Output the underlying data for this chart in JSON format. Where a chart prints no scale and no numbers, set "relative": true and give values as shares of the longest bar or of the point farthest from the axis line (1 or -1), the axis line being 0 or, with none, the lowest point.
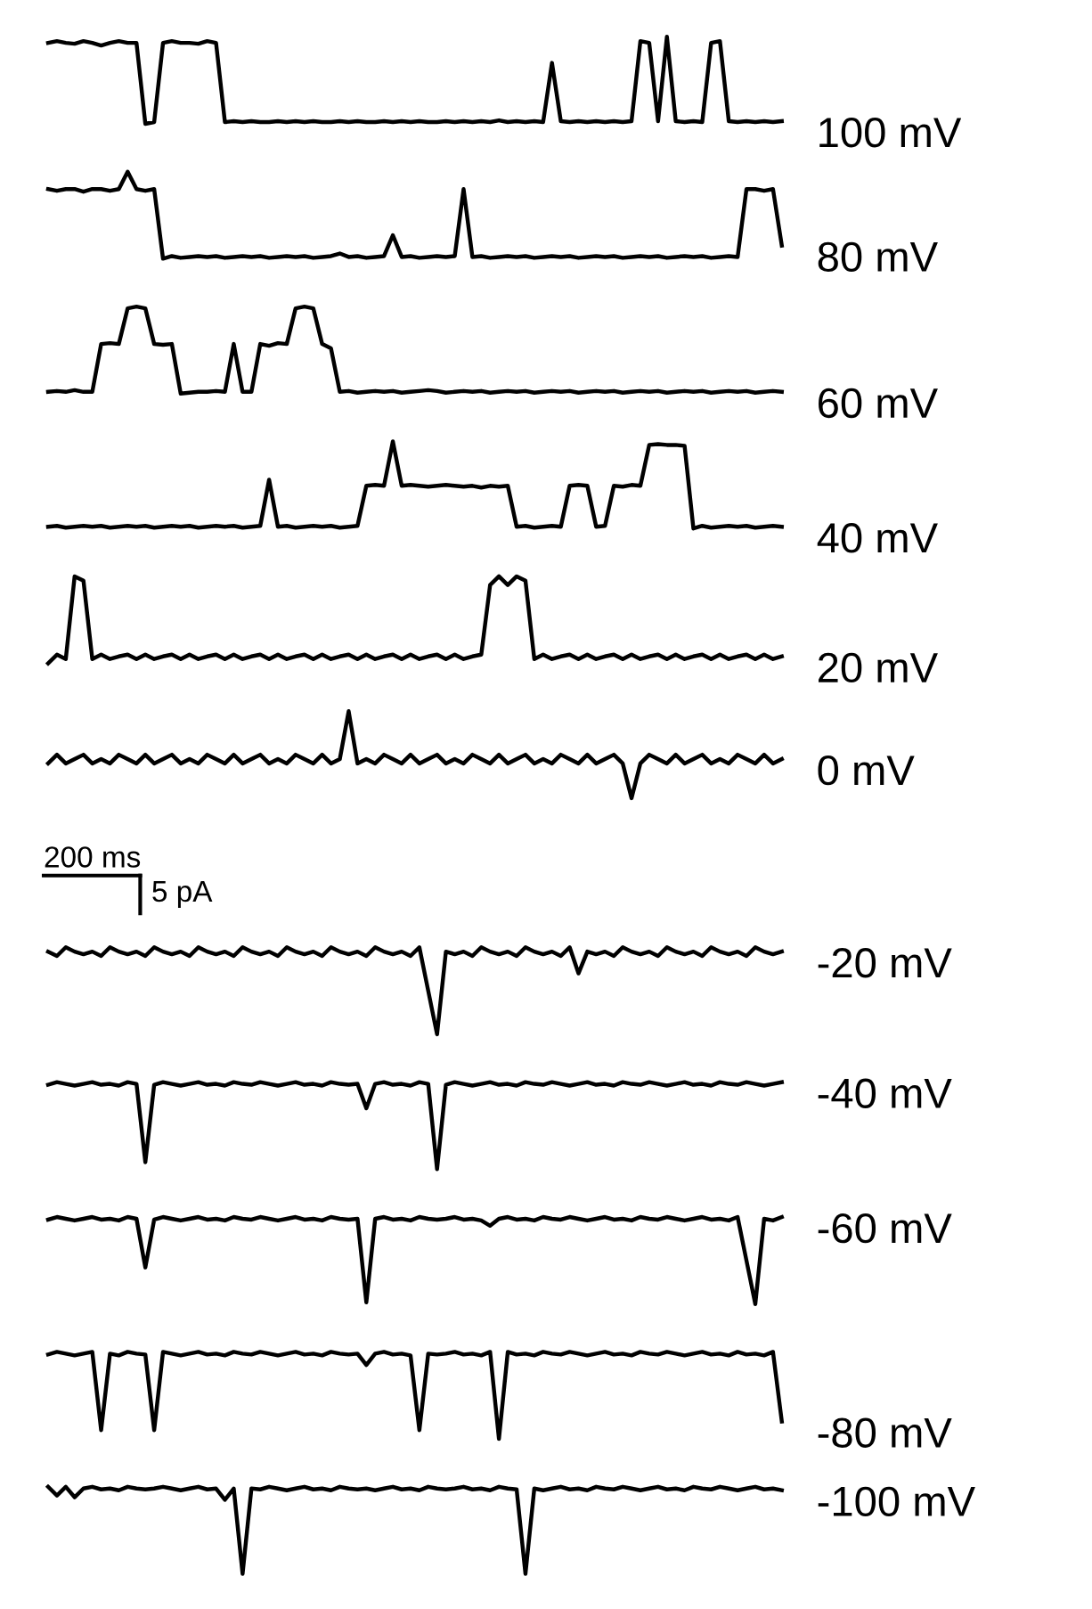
{
  "chart_data": [
    {
      "type": "line",
      "relative": true,
      "tick_labels": false,
      "categories": [
        null,
        null,
        null,
        null,
        null,
        null,
        null,
        null,
        null,
        null,
        null,
        null,
        null,
        null,
        null,
        null,
        null,
        null,
        null,
        null,
        null,
        null,
        null,
        null,
        null,
        null,
        null,
        null,
        null,
        null,
        null,
        null,
        null,
        null,
        null,
        null,
        null,
        null,
        null,
        null,
        null,
        null,
        null,
        null,
        null,
        null,
        null,
        null,
        null,
        null,
        null,
        null,
        null,
        null,
        null,
        null,
        null,
        null,
        null,
        null,
        null,
        null,
        null,
        null,
        null,
        null,
        null,
        null,
        null,
        null,
        null,
        null,
        null,
        null,
        null,
        null,
        null,
        null,
        null,
        null,
        null,
        null,
        null,
        null
      ],
      "series": [
        {
          "name": "100 mV",
          "color": "#000000",
          "values": [
            0.93,
            0.95,
            0.93,
            0.92,
            0.95,
            0.93,
            0.9,
            0.93,
            0.95,
            0.93,
            0.93,
            0,
            0.02,
            0.93,
            0.95,
            0.93,
            0.93,
            0.92,
            0.95,
            0.93,
            0.02,
            0.03,
            0.02,
            0.03,
            0.02,
            0.02,
            0.03,
            0.02,
            0.03,
            0.02,
            0.03,
            0.02,
            0.02,
            0.03,
            0.02,
            0.03,
            0.02,
            0.02,
            0.03,
            0.02,
            0.03,
            0.02,
            0.03,
            0.02,
            0.02,
            0.03,
            0.02,
            0.03,
            0.02,
            0.03,
            0.02,
            0.04,
            0.02,
            0.03,
            0.02,
            0.03,
            0.02,
            0.7,
            0.03,
            0.02,
            0.03,
            0.02,
            0.03,
            0.02,
            0.03,
            0.02,
            0.03,
            0.95,
            0.93,
            0.03,
            1,
            0.03,
            0.02,
            0.03,
            0.02,
            0.93,
            0.95,
            0.03,
            0.02,
            0.03,
            0.02,
            0.03,
            0.02,
            0.03
          ]
        }
      ]
    },
    {
      "type": "line",
      "relative": true,
      "tick_labels": false,
      "categories": [
        null,
        null,
        null,
        null,
        null,
        null,
        null,
        null,
        null,
        null,
        null,
        null,
        null,
        null,
        null,
        null,
        null,
        null,
        null,
        null,
        null,
        null,
        null,
        null,
        null,
        null,
        null,
        null,
        null,
        null,
        null,
        null,
        null,
        null,
        null,
        null,
        null,
        null,
        null,
        null,
        null,
        null,
        null,
        null,
        null,
        null,
        null,
        null,
        null,
        null,
        null,
        null,
        null,
        null,
        null,
        null,
        null,
        null,
        null,
        null,
        null,
        null,
        null,
        null,
        null,
        null,
        null,
        null,
        null,
        null,
        null,
        null,
        null,
        null,
        null,
        null,
        null,
        null,
        null,
        null,
        null,
        null,
        null,
        null
      ],
      "series": [
        {
          "name": "80 mV",
          "color": "#000000",
          "values": [
            0.8,
            0.78,
            0.8,
            0.8,
            0.77,
            0.8,
            0.8,
            0.78,
            0.8,
            1,
            0.8,
            0.78,
            0.8,
            0,
            0.03,
            0.01,
            0.02,
            0.03,
            0.02,
            0.03,
            0.01,
            0.02,
            0.03,
            0.02,
            0.03,
            0.01,
            0.02,
            0.03,
            0.02,
            0.03,
            0.01,
            0.02,
            0.03,
            0.06,
            0.02,
            0.03,
            0.01,
            0.02,
            0.03,
            0.27,
            0.02,
            0.03,
            0.01,
            0.02,
            0.03,
            0.02,
            0.03,
            0.8,
            0.02,
            0.03,
            0.01,
            0.02,
            0.03,
            0.02,
            0.03,
            0.01,
            0.02,
            0.03,
            0.02,
            0.03,
            0.01,
            0.02,
            0.03,
            0.02,
            0.03,
            0.01,
            0.02,
            0.03,
            0.02,
            0.03,
            0.01,
            0.02,
            0.03,
            0.02,
            0.03,
            0.01,
            0.02,
            0.03,
            0.02,
            0.8,
            0.8,
            0.78,
            0.8,
            0.15
          ]
        }
      ]
    },
    {
      "type": "line",
      "relative": true,
      "tick_labels": false,
      "categories": [
        null,
        null,
        null,
        null,
        null,
        null,
        null,
        null,
        null,
        null,
        null,
        null,
        null,
        null,
        null,
        null,
        null,
        null,
        null,
        null,
        null,
        null,
        null,
        null,
        null,
        null,
        null,
        null,
        null,
        null,
        null,
        null,
        null,
        null,
        null,
        null,
        null,
        null,
        null,
        null,
        null,
        null,
        null,
        null,
        null,
        null,
        null,
        null,
        null,
        null,
        null,
        null,
        null,
        null,
        null,
        null,
        null,
        null,
        null,
        null,
        null,
        null,
        null,
        null,
        null,
        null,
        null,
        null,
        null,
        null,
        null,
        null,
        null,
        null,
        null,
        null,
        null,
        null,
        null,
        null,
        null,
        null,
        null,
        null
      ],
      "series": [
        {
          "name": "60 mV",
          "color": "#000000",
          "values": [
            0.02,
            0.03,
            0.02,
            0.04,
            0.02,
            0.02,
            0.57,
            0.58,
            0.57,
            0.98,
            1,
            0.98,
            0.57,
            0.56,
            0.57,
            0,
            0.01,
            0.02,
            0.02,
            0.03,
            0.02,
            0.57,
            0.02,
            0.02,
            0.57,
            0.55,
            0.58,
            0.57,
            0.98,
            1,
            0.98,
            0.57,
            0.52,
            0.02,
            0.03,
            0.01,
            0.02,
            0.03,
            0.02,
            0.03,
            0.01,
            0.02,
            0.03,
            0.04,
            0.03,
            0.01,
            0.02,
            0.03,
            0.02,
            0.03,
            0.01,
            0.02,
            0.03,
            0.02,
            0.03,
            0.01,
            0.02,
            0.03,
            0.02,
            0.03,
            0.01,
            0.02,
            0.03,
            0.02,
            0.03,
            0.01,
            0.02,
            0.03,
            0.02,
            0.03,
            0.01,
            0.02,
            0.03,
            0.02,
            0.03,
            0.01,
            0.02,
            0.03,
            0.02,
            0.03,
            0.01,
            0.02,
            0.03,
            0.02
          ]
        }
      ]
    },
    {
      "type": "line",
      "relative": true,
      "tick_labels": false,
      "categories": [
        null,
        null,
        null,
        null,
        null,
        null,
        null,
        null,
        null,
        null,
        null,
        null,
        null,
        null,
        null,
        null,
        null,
        null,
        null,
        null,
        null,
        null,
        null,
        null,
        null,
        null,
        null,
        null,
        null,
        null,
        null,
        null,
        null,
        null,
        null,
        null,
        null,
        null,
        null,
        null,
        null,
        null,
        null,
        null,
        null,
        null,
        null,
        null,
        null,
        null,
        null,
        null,
        null,
        null,
        null,
        null,
        null,
        null,
        null,
        null,
        null,
        null,
        null,
        null,
        null,
        null,
        null,
        null,
        null,
        null,
        null,
        null,
        null,
        null,
        null,
        null,
        null,
        null,
        null,
        null,
        null,
        null,
        null,
        null
      ],
      "series": [
        {
          "name": "40 mV",
          "color": "#000000",
          "values": [
            0.02,
            0.03,
            0.01,
            0.02,
            0.03,
            0.02,
            0.03,
            0.01,
            0.02,
            0.03,
            0.02,
            0.03,
            0.01,
            0.02,
            0.03,
            0.02,
            0.03,
            0.01,
            0.02,
            0.03,
            0.02,
            0.03,
            0.01,
            0.02,
            0.03,
            0.56,
            0.02,
            0.03,
            0.01,
            0.02,
            0.03,
            0.02,
            0.03,
            0.01,
            0.02,
            0.03,
            0.49,
            0.5,
            0.49,
            1,
            0.49,
            0.5,
            0.49,
            0.48,
            0.49,
            0.5,
            0.49,
            0.48,
            0.49,
            0.47,
            0.49,
            0.48,
            0.49,
            0.02,
            0.03,
            0.01,
            0.02,
            0.03,
            0.02,
            0.49,
            0.5,
            0.49,
            0.02,
            0.03,
            0.49,
            0.48,
            0.5,
            0.49,
            0.96,
            0.97,
            0.96,
            0.96,
            0.95,
            0,
            0.03,
            0.01,
            0.02,
            0.03,
            0.02,
            0.03,
            0.01,
            0.02,
            0.03,
            0.02
          ]
        }
      ]
    },
    {
      "type": "line",
      "relative": true,
      "tick_labels": false,
      "categories": [
        null,
        null,
        null,
        null,
        null,
        null,
        null,
        null,
        null,
        null,
        null,
        null,
        null,
        null,
        null,
        null,
        null,
        null,
        null,
        null,
        null,
        null,
        null,
        null,
        null,
        null,
        null,
        null,
        null,
        null,
        null,
        null,
        null,
        null,
        null,
        null,
        null,
        null,
        null,
        null,
        null,
        null,
        null,
        null,
        null,
        null,
        null,
        null,
        null,
        null,
        null,
        null,
        null,
        null,
        null,
        null,
        null,
        null,
        null,
        null,
        null,
        null,
        null,
        null,
        null,
        null,
        null,
        null,
        null,
        null,
        null,
        null,
        null,
        null,
        null,
        null,
        null,
        null,
        null,
        null,
        null,
        null,
        null,
        null
      ],
      "series": [
        {
          "name": "20 mV",
          "color": "#000000",
          "values": [
            0,
            0.1,
            0.05,
            1,
            0.95,
            0.05,
            0.1,
            0.05,
            0.08,
            0.1,
            0.05,
            0.1,
            0.05,
            0.08,
            0.1,
            0.05,
            0.1,
            0.05,
            0.08,
            0.1,
            0.05,
            0.1,
            0.05,
            0.08,
            0.1,
            0.05,
            0.1,
            0.05,
            0.08,
            0.1,
            0.05,
            0.1,
            0.05,
            0.08,
            0.1,
            0.05,
            0.1,
            0.05,
            0.08,
            0.1,
            0.05,
            0.1,
            0.05,
            0.08,
            0.1,
            0.05,
            0.1,
            0.05,
            0.08,
            0.1,
            0.9,
            1,
            0.9,
            1,
            0.95,
            0.05,
            0.1,
            0.05,
            0.08,
            0.1,
            0.05,
            0.1,
            0.05,
            0.08,
            0.1,
            0.05,
            0.1,
            0.05,
            0.08,
            0.1,
            0.05,
            0.1,
            0.05,
            0.08,
            0.1,
            0.05,
            0.1,
            0.05,
            0.08,
            0.1,
            0.05,
            0.1,
            0.05,
            0.08
          ]
        }
      ]
    },
    {
      "type": "line",
      "relative": true,
      "tick_labels": false,
      "annotations": [
        "200 ms",
        "5 pA"
      ],
      "categories": [
        null,
        null,
        null,
        null,
        null,
        null,
        null,
        null,
        null,
        null,
        null,
        null,
        null,
        null,
        null,
        null,
        null,
        null,
        null,
        null,
        null,
        null,
        null,
        null,
        null,
        null,
        null,
        null,
        null,
        null,
        null,
        null,
        null,
        null,
        null,
        null,
        null,
        null,
        null,
        null,
        null,
        null,
        null,
        null,
        null,
        null,
        null,
        null,
        null,
        null,
        null,
        null,
        null,
        null,
        null,
        null,
        null,
        null,
        null,
        null,
        null,
        null,
        null,
        null,
        null,
        null,
        null,
        null,
        null,
        null,
        null,
        null,
        null,
        null,
        null,
        null,
        null,
        null,
        null,
        null,
        null,
        null,
        null,
        null
      ],
      "series": [
        {
          "name": "0 mV",
          "color": "#000000",
          "values": [
            0.4,
            0.5,
            0.4,
            0.45,
            0.5,
            0.4,
            0.45,
            0.4,
            0.5,
            0.45,
            0.4,
            0.5,
            0.4,
            0.45,
            0.5,
            0.4,
            0.45,
            0.4,
            0.5,
            0.45,
            0.4,
            0.5,
            0.4,
            0.45,
            0.5,
            0.4,
            0.45,
            0.4,
            0.5,
            0.45,
            0.4,
            0.5,
            0.4,
            0.45,
            1,
            0.4,
            0.45,
            0.4,
            0.5,
            0.45,
            0.4,
            0.5,
            0.4,
            0.45,
            0.5,
            0.4,
            0.45,
            0.4,
            0.5,
            0.45,
            0.4,
            0.5,
            0.4,
            0.45,
            0.5,
            0.4,
            0.45,
            0.4,
            0.5,
            0.45,
            0.4,
            0.5,
            0.4,
            0.45,
            0.5,
            0.4,
            0,
            0.4,
            0.5,
            0.45,
            0.4,
            0.5,
            0.4,
            0.45,
            0.5,
            0.4,
            0.45,
            0.4,
            0.5,
            0.45,
            0.4,
            0.5,
            0.4,
            0.45
          ]
        }
      ]
    },
    {
      "type": "line",
      "relative": true,
      "tick_labels": false,
      "categories": [
        null,
        null,
        null,
        null,
        null,
        null,
        null,
        null,
        null,
        null,
        null,
        null,
        null,
        null,
        null,
        null,
        null,
        null,
        null,
        null,
        null,
        null,
        null,
        null,
        null,
        null,
        null,
        null,
        null,
        null,
        null,
        null,
        null,
        null,
        null,
        null,
        null,
        null,
        null,
        null,
        null,
        null,
        null,
        null,
        null,
        null,
        null,
        null,
        null,
        null,
        null,
        null,
        null,
        null,
        null,
        null,
        null,
        null,
        null,
        null,
        null,
        null,
        null,
        null,
        null,
        null,
        null,
        null,
        null,
        null,
        null,
        null,
        null,
        null,
        null,
        null,
        null,
        null,
        null,
        null,
        null,
        null,
        null,
        null
      ],
      "series": [
        {
          "name": "-20 mV",
          "color": "#000000",
          "values": [
            0.95,
            0.9,
            1,
            0.95,
            0.92,
            0.95,
            0.9,
            1,
            0.95,
            0.92,
            0.95,
            0.9,
            1,
            0.95,
            0.92,
            0.95,
            0.9,
            1,
            0.95,
            0.92,
            0.95,
            0.9,
            1,
            0.95,
            0.92,
            0.95,
            0.9,
            1,
            0.95,
            0.92,
            0.95,
            0.9,
            1,
            0.95,
            0.92,
            0.95,
            0.9,
            1,
            0.95,
            0.92,
            0.95,
            0.9,
            1,
            0.5,
            0,
            0.95,
            0.92,
            0.95,
            0.9,
            1,
            0.95,
            0.92,
            0.95,
            0.9,
            1,
            0.95,
            0.92,
            0.95,
            0.9,
            1,
            0.7,
            0.95,
            0.92,
            0.95,
            0.9,
            1,
            0.95,
            0.92,
            0.95,
            0.9,
            1,
            0.95,
            0.92,
            0.95,
            0.9,
            1,
            0.95,
            0.92,
            0.95,
            0.9,
            1,
            0.95,
            0.92,
            0.95
          ]
        }
      ]
    },
    {
      "type": "line",
      "relative": true,
      "tick_labels": false,
      "categories": [
        null,
        null,
        null,
        null,
        null,
        null,
        null,
        null,
        null,
        null,
        null,
        null,
        null,
        null,
        null,
        null,
        null,
        null,
        null,
        null,
        null,
        null,
        null,
        null,
        null,
        null,
        null,
        null,
        null,
        null,
        null,
        null,
        null,
        null,
        null,
        null,
        null,
        null,
        null,
        null,
        null,
        null,
        null,
        null,
        null,
        null,
        null,
        null,
        null,
        null,
        null,
        null,
        null,
        null,
        null,
        null,
        null,
        null,
        null,
        null,
        null,
        null,
        null,
        null,
        null,
        null,
        null,
        null,
        null,
        null,
        null,
        null,
        null,
        null,
        null,
        null,
        null,
        null,
        null,
        null,
        null,
        null,
        null,
        null
      ],
      "series": [
        {
          "name": "-40 mV",
          "color": "#000000",
          "values": [
            0.97,
            1,
            0.98,
            0.96,
            0.98,
            1,
            0.97,
            0.98,
            0.96,
            1,
            0.98,
            0.08,
            0.97,
            1,
            0.98,
            0.96,
            0.98,
            1,
            0.97,
            0.98,
            0.96,
            1,
            0.98,
            0.97,
            1,
            0.98,
            0.96,
            0.98,
            1,
            0.97,
            0.98,
            0.96,
            1,
            0.98,
            0.97,
            0.98,
            0.7,
            0.98,
            1,
            0.97,
            0.98,
            0.96,
            1,
            0.98,
            0,
            0.97,
            1,
            0.98,
            0.96,
            0.98,
            1,
            0.97,
            0.98,
            0.96,
            1,
            0.98,
            0.97,
            1,
            0.98,
            0.96,
            0.98,
            1,
            0.97,
            0.98,
            0.96,
            1,
            0.98,
            0.97,
            1,
            0.98,
            0.96,
            0.98,
            1,
            0.97,
            0.98,
            0.96,
            1,
            0.98,
            0.97,
            1,
            0.98,
            0.96,
            0.98,
            1
          ]
        }
      ]
    },
    {
      "type": "line",
      "relative": true,
      "tick_labels": false,
      "categories": [
        null,
        null,
        null,
        null,
        null,
        null,
        null,
        null,
        null,
        null,
        null,
        null,
        null,
        null,
        null,
        null,
        null,
        null,
        null,
        null,
        null,
        null,
        null,
        null,
        null,
        null,
        null,
        null,
        null,
        null,
        null,
        null,
        null,
        null,
        null,
        null,
        null,
        null,
        null,
        null,
        null,
        null,
        null,
        null,
        null,
        null,
        null,
        null,
        null,
        null,
        null,
        null,
        null,
        null,
        null,
        null,
        null,
        null,
        null,
        null,
        null,
        null,
        null,
        null,
        null,
        null,
        null,
        null,
        null,
        null,
        null,
        null,
        null,
        null,
        null,
        null,
        null,
        null,
        null,
        null,
        null,
        null,
        null,
        null
      ],
      "series": [
        {
          "name": "-60 mV",
          "color": "#000000",
          "values": [
            0.97,
            1,
            0.98,
            0.96,
            0.98,
            1,
            0.97,
            0.98,
            0.96,
            1,
            0.98,
            0.42,
            0.97,
            1,
            0.98,
            0.96,
            0.98,
            1,
            0.97,
            0.98,
            0.96,
            1,
            0.98,
            0.97,
            1,
            0.98,
            0.96,
            0.98,
            1,
            0.97,
            0.98,
            0.96,
            1,
            0.98,
            0.97,
            0.98,
            0.02,
            0.98,
            1,
            0.97,
            0.98,
            0.96,
            1,
            0.98,
            0.97,
            0.98,
            1,
            0.97,
            0.98,
            0.96,
            0.9,
            0.98,
            1,
            0.97,
            0.98,
            0.96,
            1,
            0.98,
            0.97,
            1,
            0.98,
            0.96,
            0.98,
            1,
            0.97,
            0.98,
            0.96,
            1,
            0.98,
            0.97,
            1,
            0.98,
            0.96,
            0.98,
            1,
            0.97,
            0.98,
            0.96,
            1,
            0.5,
            0,
            0.98,
            0.96,
            1
          ]
        }
      ]
    },
    {
      "type": "line",
      "relative": true,
      "tick_labels": false,
      "categories": [
        null,
        null,
        null,
        null,
        null,
        null,
        null,
        null,
        null,
        null,
        null,
        null,
        null,
        null,
        null,
        null,
        null,
        null,
        null,
        null,
        null,
        null,
        null,
        null,
        null,
        null,
        null,
        null,
        null,
        null,
        null,
        null,
        null,
        null,
        null,
        null,
        null,
        null,
        null,
        null,
        null,
        null,
        null,
        null,
        null,
        null,
        null,
        null,
        null,
        null,
        null,
        null,
        null,
        null,
        null,
        null,
        null,
        null,
        null,
        null,
        null,
        null,
        null,
        null,
        null,
        null,
        null,
        null,
        null,
        null,
        null,
        null,
        null,
        null,
        null,
        null,
        null,
        null,
        null,
        null,
        null,
        null,
        null,
        null
      ],
      "series": [
        {
          "name": "-80 mV",
          "color": "#000000",
          "values": [
            0.97,
            1,
            0.98,
            0.96,
            0.98,
            1,
            0.1,
            0.98,
            0.96,
            1,
            0.98,
            0.97,
            0.1,
            1,
            0.98,
            0.96,
            0.98,
            1,
            0.97,
            0.98,
            0.96,
            1,
            0.98,
            0.97,
            1,
            0.98,
            0.96,
            0.98,
            1,
            0.97,
            0.98,
            0.96,
            1,
            0.98,
            0.97,
            0.98,
            0.85,
            0.98,
            1,
            0.97,
            0.98,
            0.96,
            0.1,
            0.98,
            0.97,
            0.98,
            1,
            0.97,
            0.98,
            0.96,
            1,
            0,
            1,
            0.97,
            0.98,
            0.96,
            1,
            0.98,
            0.97,
            1,
            0.98,
            0.96,
            0.98,
            1,
            0.97,
            0.98,
            0.96,
            1,
            0.98,
            0.97,
            1,
            0.98,
            0.96,
            0.98,
            1,
            0.97,
            0.98,
            0.96,
            1,
            0.97,
            0.98,
            0.96,
            1,
            0.2
          ]
        }
      ]
    },
    {
      "type": "line",
      "relative": true,
      "tick_labels": false,
      "categories": [
        null,
        null,
        null,
        null,
        null,
        null,
        null,
        null,
        null,
        null,
        null,
        null,
        null,
        null,
        null,
        null,
        null,
        null,
        null,
        null,
        null,
        null,
        null,
        null,
        null,
        null,
        null,
        null,
        null,
        null,
        null,
        null,
        null,
        null,
        null,
        null,
        null,
        null,
        null,
        null,
        null,
        null,
        null,
        null,
        null,
        null,
        null,
        null,
        null,
        null,
        null,
        null,
        null,
        null,
        null,
        null,
        null,
        null,
        null,
        null,
        null,
        null,
        null,
        null,
        null,
        null,
        null,
        null,
        null,
        null,
        null,
        null,
        null,
        null,
        null,
        null,
        null,
        null,
        null,
        null,
        null,
        null,
        null,
        null
      ],
      "series": [
        {
          "name": "-100 mV",
          "color": "#000000",
          "values": [
            1,
            0.9,
            1,
            0.88,
            0.98,
            1,
            0.97,
            0.98,
            0.96,
            1,
            0.98,
            0.97,
            0.98,
            1,
            0.98,
            0.96,
            0.98,
            1,
            0.97,
            0.98,
            0.85,
            0.98,
            0,
            0.98,
            0.97,
            1,
            0.98,
            0.96,
            0.98,
            1,
            0.97,
            0.98,
            0.96,
            1,
            0.98,
            0.97,
            0.98,
            0.96,
            0.98,
            1,
            0.97,
            0.98,
            0.96,
            1,
            0.98,
            0.97,
            0.98,
            1,
            0.97,
            0.98,
            0.96,
            1,
            0.98,
            0.97,
            0,
            0.98,
            0.96,
            0.98,
            1,
            0.97,
            0.98,
            0.96,
            1,
            0.98,
            0.97,
            1,
            0.98,
            0.96,
            0.98,
            1,
            0.97,
            0.98,
            0.96,
            1,
            0.98,
            0.97,
            1,
            0.98,
            0.96,
            0.98,
            1,
            0.97,
            0.98,
            0.96
          ]
        }
      ]
    }
  ]
}
